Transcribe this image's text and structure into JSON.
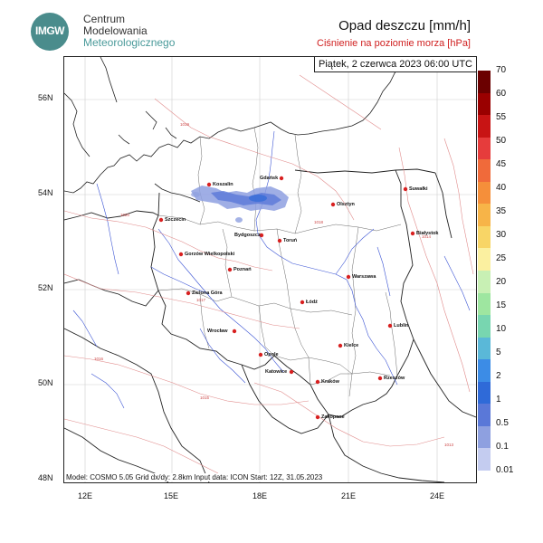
{
  "logo": {
    "mark": "IMGW",
    "line1": "Centrum",
    "line2": "Modelowania",
    "line3": "Meteorologicznego"
  },
  "header": {
    "title": "Opad deszczu [mm/h]",
    "subtitle": "Ciśnienie na poziomie morza [hPa]"
  },
  "map": {
    "datetime": "Piątek, 2 czerwca 2023 06:00 UTC",
    "footer": "Model: COSMO 5.05  Grid dx/dy: 2.8km  Input data: ICON  Start: 12Z, 31.05.2023",
    "lat_labels": [
      "56N",
      "54N",
      "52N",
      "50N",
      "48N"
    ],
    "lon_labels": [
      "12E",
      "15E",
      "18E",
      "21E",
      "24E"
    ],
    "cities": [
      {
        "name": "Gdańsk"
      },
      {
        "name": "Koszalin"
      },
      {
        "name": "Olsztyn"
      },
      {
        "name": "Suwałki"
      },
      {
        "name": "Szczecin"
      },
      {
        "name": "Bydgoszcz"
      },
      {
        "name": "Toruń"
      },
      {
        "name": "Białystok"
      },
      {
        "name": "Gorzów Wielkopolski"
      },
      {
        "name": "Poznań"
      },
      {
        "name": "Warszawa"
      },
      {
        "name": "Zielona Góra"
      },
      {
        "name": "Łódź"
      },
      {
        "name": "Lublin"
      },
      {
        "name": "Wrocław"
      },
      {
        "name": "Opole"
      },
      {
        "name": "Kielce"
      },
      {
        "name": "Katowice"
      },
      {
        "name": "Rzeszów"
      },
      {
        "name": "Kraków"
      },
      {
        "name": "Zakopane"
      }
    ],
    "isobars": [
      "1020",
      "1019",
      "1018",
      "1017",
      "1016",
      "1015",
      "1014",
      "1013"
    ]
  },
  "colorbar": {
    "labels": [
      "70",
      "60",
      "55",
      "50",
      "45",
      "40",
      "35",
      "30",
      "25",
      "20",
      "15",
      "10",
      "5",
      "2",
      "1",
      "0.5",
      "0.1",
      "0.01"
    ],
    "colors": [
      "#6b0000",
      "#9a0000",
      "#c81414",
      "#e63c3c",
      "#f06a3a",
      "#f58f3a",
      "#f7b448",
      "#f8d566",
      "#fbf0a0",
      "#c8f0b4",
      "#9ee6a0",
      "#78d6b0",
      "#5ab8d8",
      "#3c8ce6",
      "#2f6ad8",
      "#5a78d8",
      "#8ea0e0",
      "#c4ccf0"
    ]
  }
}
